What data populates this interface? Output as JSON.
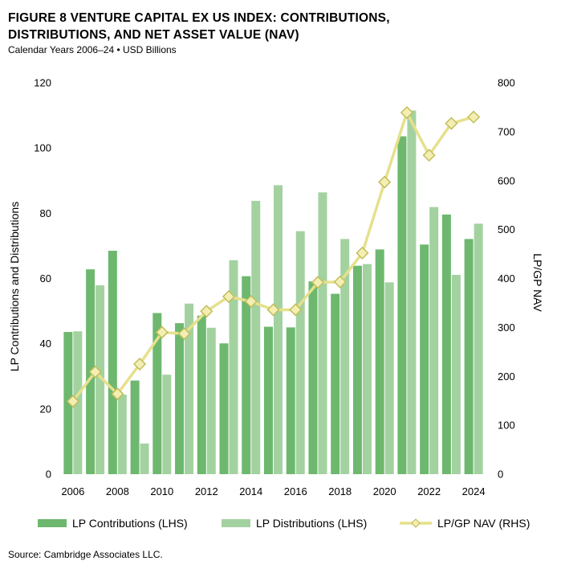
{
  "header": {
    "title_line1": "FIGURE 8   VENTURE CAPITAL EX US INDEX: CONTRIBUTIONS,",
    "title_line2": "DISTRIBUTIONS, AND NET ASSET VALUE (NAV)",
    "subtitle": "Calendar Years 2006–24 • USD Billions"
  },
  "footer": {
    "source": "Source: Cambridge Associates LLC."
  },
  "colors": {
    "contributions": "#6db86e",
    "distributions": "#a3d2a0",
    "nav_line": "#e6e08c",
    "nav_marker_fill": "#f3efb4",
    "nav_marker_stroke": "#c3bd5a"
  },
  "chart_data": {
    "type": "bar",
    "x": [
      2006,
      2007,
      2008,
      2009,
      2010,
      2011,
      2012,
      2013,
      2014,
      2015,
      2016,
      2017,
      2018,
      2019,
      2020,
      2021,
      2022,
      2023,
      2024
    ],
    "xticks": [
      "2006",
      "2008",
      "2010",
      "2012",
      "2014",
      "2016",
      "2018",
      "2020",
      "2022",
      "2024"
    ],
    "ylabel": "LP Contributions and Distributions",
    "y2label": "LP/GP NAV",
    "ylim": [
      0,
      120
    ],
    "y2lim": [
      0,
      800
    ],
    "yticks": [
      "0",
      "20",
      "40",
      "60",
      "80",
      "100",
      "120"
    ],
    "y2ticks": [
      "0",
      "100",
      "200",
      "300",
      "400",
      "500",
      "600",
      "700",
      "800"
    ],
    "grid": false,
    "legend_position": "bottom",
    "series": [
      {
        "name": "LP Contributions (LHS)",
        "kind": "bar",
        "axis": "left",
        "values": [
          43.6,
          62.8,
          68.5,
          28.7,
          49.4,
          46.3,
          48.6,
          40.1,
          60.7,
          45.2,
          45.0,
          59.1,
          55.3,
          63.9,
          68.9,
          103.6,
          70.4,
          79.6,
          72.1
        ]
      },
      {
        "name": "LP Distributions (LHS)",
        "kind": "bar",
        "axis": "left",
        "values": [
          43.8,
          57.9,
          24.4,
          9.4,
          30.5,
          52.3,
          44.9,
          65.6,
          83.8,
          88.6,
          74.5,
          86.4,
          72.1,
          64.4,
          58.8,
          111.5,
          81.9,
          61.1,
          76.8
        ]
      },
      {
        "name": "LP/GP NAV (RHS)",
        "kind": "line",
        "axis": "right",
        "values": [
          149,
          209,
          164,
          225,
          290,
          287,
          333,
          363,
          353,
          336,
          336,
          392,
          393,
          452,
          597,
          739,
          652,
          717,
          730
        ]
      }
    ]
  }
}
